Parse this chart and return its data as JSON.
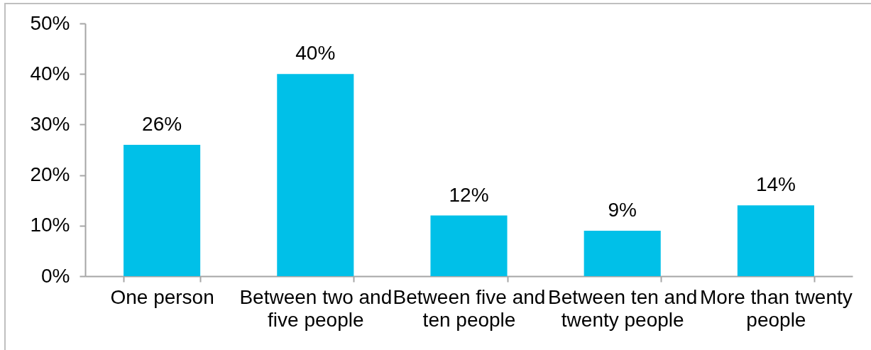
{
  "chart_data": {
    "type": "bar",
    "categories": [
      "One person",
      "Between two and five people",
      "Between five and ten people",
      "Between ten and twenty people",
      "More than twenty people"
    ],
    "values": [
      26,
      40,
      12,
      9,
      14
    ],
    "value_labels": [
      "26%",
      "40%",
      "12%",
      "9%",
      "14%"
    ],
    "color": "#00c0e8",
    "ylim": [
      0,
      50
    ],
    "yticks": [
      {
        "value": 0,
        "label": "0%"
      },
      {
        "value": 10,
        "label": "10%"
      },
      {
        "value": 20,
        "label": "20%"
      },
      {
        "value": 30,
        "label": "30%"
      },
      {
        "value": 40,
        "label": "40%"
      },
      {
        "value": 50,
        "label": "50%"
      }
    ]
  }
}
